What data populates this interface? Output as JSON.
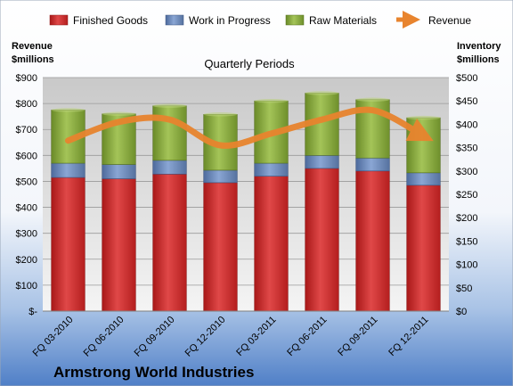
{
  "chart_data": {
    "type": "bar",
    "stacked": true,
    "title": "Quarterly Periods",
    "company": "Armstrong World Industries",
    "categories": [
      "FQ 03-2010",
      "FQ 06-2010",
      "FQ 09-2010",
      "FQ 12-2010",
      "FQ 03-2011",
      "FQ 06-2011",
      "FQ 09-2011",
      "FQ 12-2011"
    ],
    "series": [
      {
        "name": "Finished Goods",
        "color": "#cc2a2a",
        "values": [
          515,
          510,
          528,
          495,
          520,
          550,
          540,
          485
        ]
      },
      {
        "name": "Work in Progress",
        "color": "#6a86b8",
        "values": [
          55,
          55,
          53,
          48,
          50,
          50,
          50,
          48
        ]
      },
      {
        "name": "Raw Materials",
        "color": "#86a83a",
        "values": [
          205,
          195,
          210,
          215,
          240,
          240,
          225,
          212
        ]
      }
    ],
    "line_series": {
      "name": "Revenue",
      "color": "#e8842e",
      "values": [
        365,
        405,
        410,
        355,
        380,
        410,
        430,
        375
      ]
    },
    "y_left": {
      "label_line1": "Revenue",
      "label_line2": "$millions",
      "min": 0,
      "max": 900,
      "step": 100,
      "ticks": [
        "$-",
        "$100",
        "$200",
        "$300",
        "$400",
        "$500",
        "$600",
        "$700",
        "$800",
        "$900"
      ]
    },
    "y_right": {
      "label_line1": "Inventory",
      "label_line2": "$millions",
      "min": 0,
      "max": 500,
      "step": 50,
      "ticks": [
        "$0",
        "$50",
        "$100",
        "$150",
        "$200",
        "$250",
        "$300",
        "$350",
        "$400",
        "$450",
        "$500"
      ]
    },
    "grid": true,
    "legend_position": "top"
  }
}
